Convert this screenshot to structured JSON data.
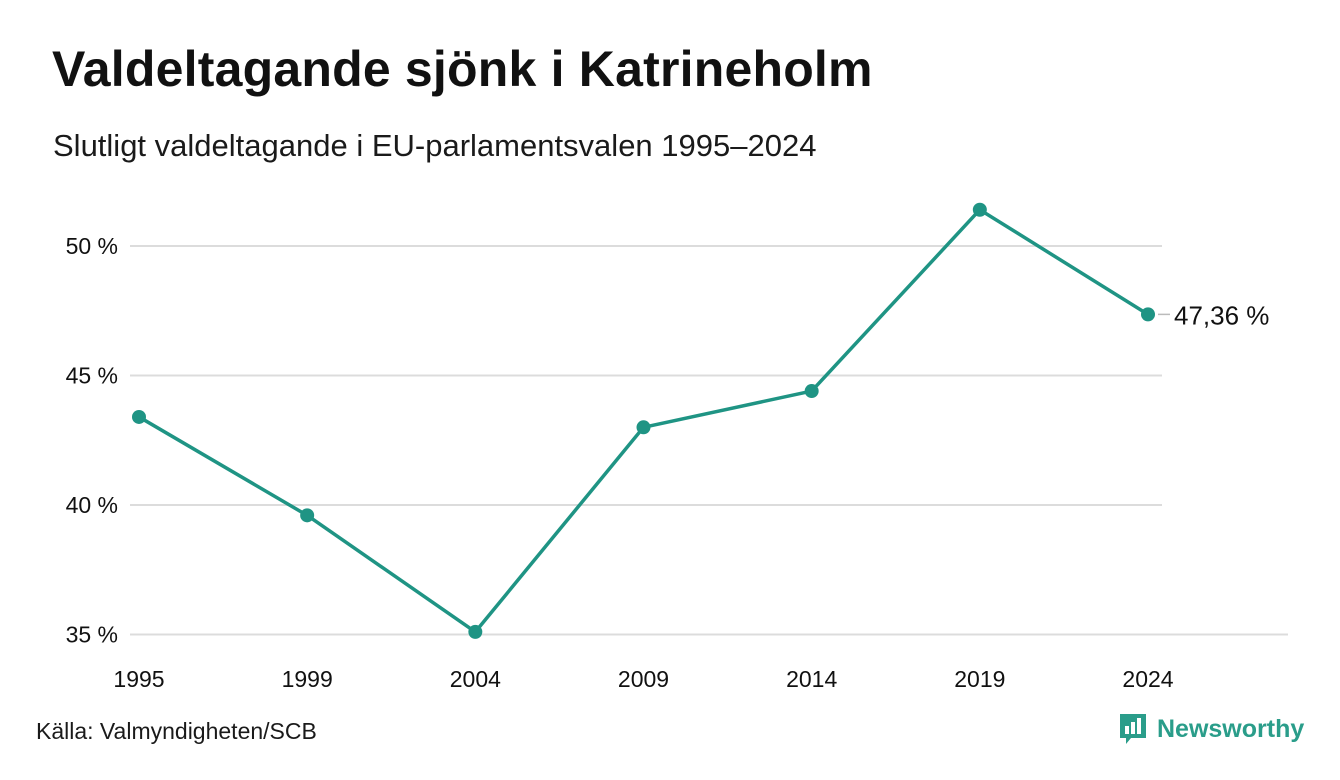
{
  "header": {
    "title": "Valdeltagande sjönk i Katrineholm",
    "subtitle": "Slutligt valdeltagande i EU-parlamentsvalen 1995–2024"
  },
  "footer": {
    "source": "Källa: Valmyndigheten/SCB",
    "brand": "Newsworthy",
    "brand_icon": "bar-chart-speech-bubble-icon"
  },
  "colors": {
    "line": "#1f9484",
    "grid": "#dcdcdc",
    "text": "#111111",
    "brand": "#2a9d8a"
  },
  "chart_data": {
    "type": "line",
    "title": "Valdeltagande sjönk i Katrineholm",
    "subtitle": "Slutligt valdeltagande i EU-parlamentsvalen 1995–2024",
    "x": [
      "1995",
      "1999",
      "2004",
      "2009",
      "2014",
      "2019",
      "2024"
    ],
    "values": [
      43.4,
      39.6,
      35.1,
      43.0,
      44.4,
      51.4,
      47.36
    ],
    "yticks": [
      35,
      40,
      45,
      50
    ],
    "ytick_labels": [
      "35 %",
      "40 %",
      "45 %",
      "50 %"
    ],
    "ylim": [
      35,
      52
    ],
    "grid": true,
    "end_label": "47,36 %",
    "xlabel": "",
    "ylabel": ""
  }
}
